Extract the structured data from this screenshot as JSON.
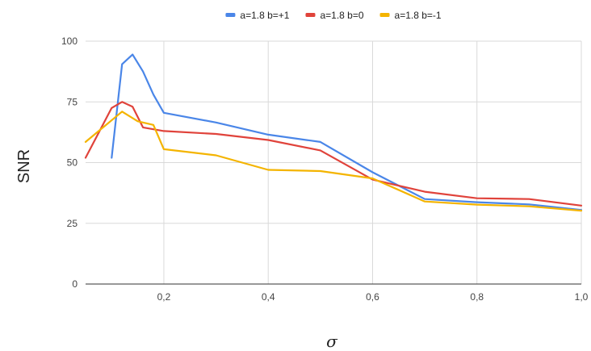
{
  "chart_data": {
    "type": "line",
    "xlabel": "σ",
    "ylabel": "SNR",
    "xlim": [
      0.05,
      1.0
    ],
    "ylim": [
      0,
      100
    ],
    "x_ticks": [
      0.2,
      0.4,
      0.6,
      0.8,
      1.0
    ],
    "x_tick_labels": [
      "0,2",
      "0,4",
      "0,6",
      "0,8",
      "1,0"
    ],
    "y_ticks": [
      0,
      25,
      50,
      75,
      100
    ],
    "y_tick_labels": [
      "0",
      "25",
      "50",
      "75",
      "100"
    ],
    "grid": true,
    "legend_position": "top",
    "series": [
      {
        "name": "a=1.8 b=+1",
        "color": "#4a86e8",
        "x": [
          0.1,
          0.12,
          0.14,
          0.16,
          0.18,
          0.2,
          0.3,
          0.4,
          0.5,
          0.6,
          0.7,
          0.8,
          0.9,
          1.0
        ],
        "y": [
          52,
          90.5,
          94.5,
          87.5,
          78,
          70.5,
          66.5,
          61.5,
          58.5,
          46,
          35,
          33.7,
          32.8,
          30.5
        ]
      },
      {
        "name": "a=1.8 b=0",
        "color": "#e0433b",
        "x": [
          0.05,
          0.1,
          0.12,
          0.14,
          0.16,
          0.2,
          0.3,
          0.4,
          0.5,
          0.6,
          0.7,
          0.8,
          0.9,
          1.0
        ],
        "y": [
          52,
          72.5,
          75,
          73,
          64.5,
          63,
          61.8,
          59.3,
          55,
          43,
          38,
          35.3,
          35,
          32.3
        ]
      },
      {
        "name": "a=1.8 b=-1",
        "color": "#f4b400",
        "x": [
          0.05,
          0.12,
          0.15,
          0.18,
          0.2,
          0.3,
          0.4,
          0.5,
          0.6,
          0.7,
          0.8,
          0.9,
          1.0
        ],
        "y": [
          58.5,
          71,
          67,
          65.5,
          55.5,
          53,
          47,
          46.5,
          43.5,
          34,
          32.7,
          32,
          30.2
        ]
      }
    ]
  }
}
